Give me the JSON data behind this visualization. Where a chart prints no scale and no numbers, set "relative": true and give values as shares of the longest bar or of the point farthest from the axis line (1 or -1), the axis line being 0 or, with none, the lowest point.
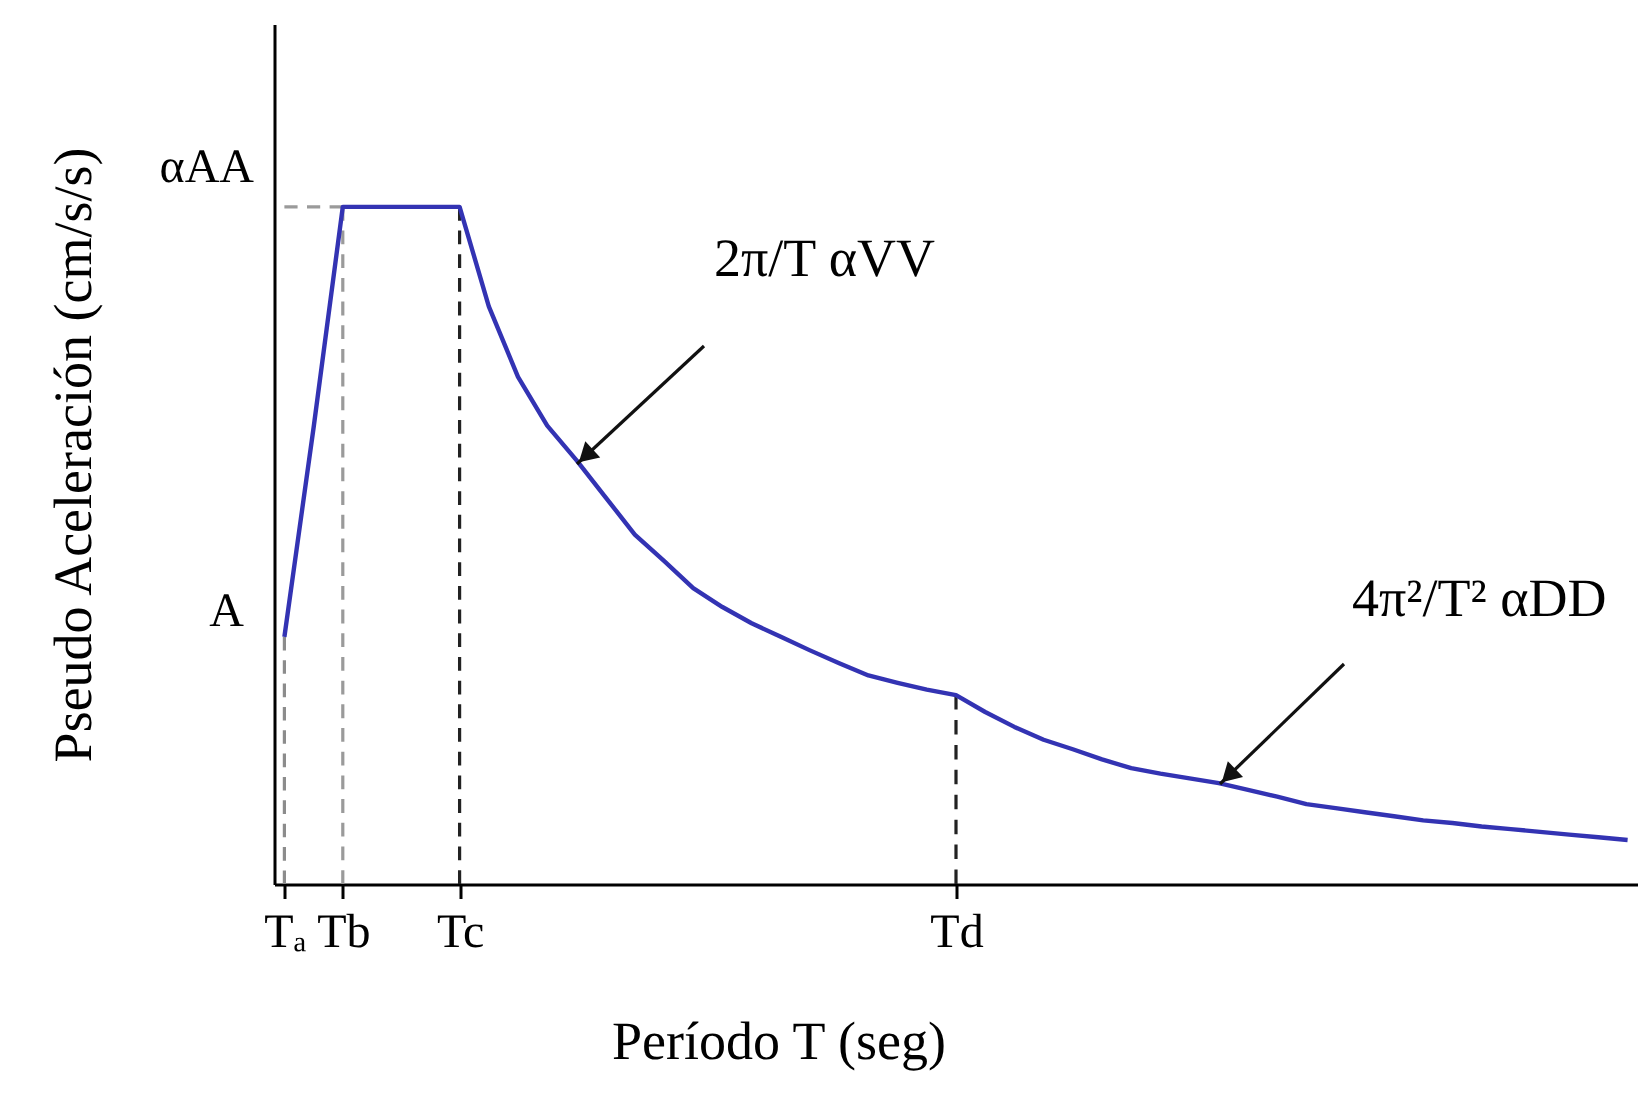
{
  "chart_data": {
    "type": "line",
    "relative": true,
    "xlabel": "Período T (seg)",
    "ylabel": "Pseudo Aceleración (cm/s/s)",
    "categories": [
      "Tₐ",
      null,
      "Tb",
      null,
      null,
      null,
      "Tc",
      null,
      null,
      null,
      null,
      null,
      null,
      null,
      null,
      null,
      null,
      null,
      null,
      null,
      null,
      null,
      null,
      "Td",
      null,
      null,
      null,
      null,
      null,
      null,
      null,
      null,
      null,
      null,
      null,
      null,
      null,
      null,
      null,
      null,
      null,
      null,
      null,
      null,
      null,
      null,
      null
    ],
    "series": [
      {
        "line_style": "dashed",
        "color": "#8c8c8c",
        "x": [
          "Tₐ",
          "Tₐ"
        ],
        "values": [
          0,
          0.365
        ]
      },
      {
        "line_style": "dashed",
        "color": "#9a9a9a",
        "x": [
          "Tₐ",
          "Tb"
        ],
        "values": [
          1,
          1
        ]
      },
      {
        "line_style": "dashed",
        "color": "#9a9a9a",
        "x": [
          "Tb",
          "Tb"
        ],
        "values": [
          0,
          1
        ]
      },
      {
        "line_style": "dashed",
        "color": "#222222",
        "x": [
          "Tc",
          "Tc"
        ],
        "values": [
          0,
          1
        ]
      },
      {
        "line_style": "dashed",
        "color": "#222222",
        "x": [
          "Td",
          "Td"
        ],
        "values": [
          0,
          0.279
        ]
      },
      {
        "color": "#3333b3",
        "values": [
          0.365,
          0.674,
          1,
          1,
          1,
          1,
          1,
          0.853,
          0.749,
          0.677,
          0.626,
          0.571,
          0.516,
          0.477,
          0.437,
          0.409,
          0.385,
          0.365,
          0.345,
          0.326,
          0.308,
          0.297,
          0.287,
          0.279,
          0.254,
          0.232,
          0.213,
          0.199,
          0.184,
          0.171,
          0.163,
          0.156,
          0.149,
          0.139,
          0.129,
          0.118,
          0.112,
          0.106,
          0.1,
          0.094,
          0.09,
          0.085,
          0.081,
          0.077,
          0.073,
          0.069,
          0.065
        ]
      }
    ],
    "annotations": [
      "A",
      "αAA",
      "2π/T αVV",
      "4π²/T² αDD"
    ]
  }
}
